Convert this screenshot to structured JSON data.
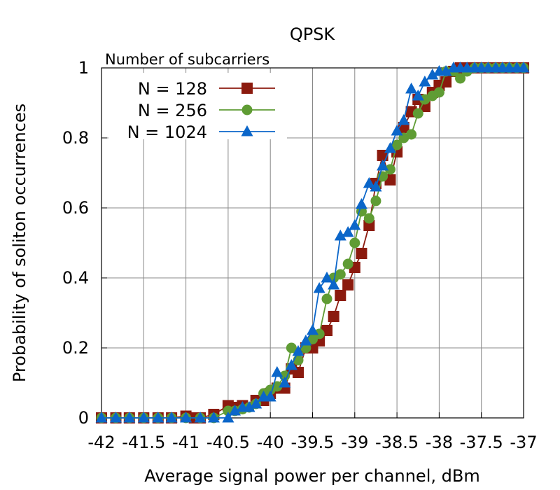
{
  "chart_data": {
    "type": "line",
    "title": "QPSK",
    "xlabel": "Average signal power per channel, dBm",
    "ylabel": "Probability of soliton occurrences",
    "xlim": [
      -42,
      -37
    ],
    "ylim": [
      0,
      1
    ],
    "x_ticks": [
      -42,
      -41.5,
      -41,
      -40.5,
      -40,
      -39.5,
      -39,
      -38.5,
      -38,
      -37.5,
      -37
    ],
    "x_tick_labels": [
      "-42",
      "-41.5",
      "-41",
      "-40.5",
      "-40",
      "-39.5",
      "-39",
      "-38.5",
      "-38",
      "-37.5",
      "-37"
    ],
    "y_ticks": [
      0,
      0.2,
      0.4,
      0.6,
      0.8,
      1
    ],
    "y_tick_labels": [
      "0",
      "0.2",
      "0.4",
      "0.6",
      "0.8",
      "1"
    ],
    "grid": true,
    "legend": {
      "title": "Number of subcarriers",
      "placement": "top-left"
    },
    "series": [
      {
        "name": "N = 128",
        "color": "#8b1a0e",
        "marker": "square",
        "x": [
          -42,
          -41.83,
          -41.67,
          -41.5,
          -41.33,
          -41.17,
          -41,
          -40.9,
          -40.83,
          -40.67,
          -40.5,
          -40.4,
          -40.33,
          -40.17,
          -40.08,
          -40,
          -39.92,
          -39.83,
          -39.75,
          -39.67,
          -39.58,
          -39.5,
          -39.42,
          -39.33,
          -39.25,
          -39.17,
          -39.08,
          -39,
          -38.92,
          -38.83,
          -38.75,
          -38.67,
          -38.58,
          -38.5,
          -38.42,
          -38.33,
          -38.25,
          -38.17,
          -38.08,
          -38,
          -37.92,
          -37.83,
          -37.75,
          -37.67,
          -37.58,
          -37.5,
          -37.42,
          -37.33,
          -37.25,
          -37.17,
          -37.08,
          -37
        ],
        "y": [
          0,
          0,
          0,
          0,
          0,
          0,
          0.005,
          0,
          0,
          0.01,
          0.035,
          0.03,
          0.035,
          0.05,
          0.05,
          0.07,
          0.085,
          0.085,
          0.14,
          0.13,
          0.2,
          0.2,
          0.22,
          0.25,
          0.29,
          0.35,
          0.38,
          0.43,
          0.47,
          0.55,
          0.67,
          0.75,
          0.68,
          0.76,
          0.83,
          0.875,
          0.91,
          0.89,
          0.93,
          0.95,
          0.96,
          0.99,
          1.0,
          1.0,
          1.0,
          1.0,
          1.0,
          1.0,
          1.0,
          1.0,
          1.0,
          1.0
        ]
      },
      {
        "name": "N = 256",
        "color": "#5f9c34",
        "marker": "circle",
        "x": [
          -42,
          -41.83,
          -41.67,
          -41.5,
          -41.33,
          -41.17,
          -41,
          -40.83,
          -40.67,
          -40.5,
          -40.42,
          -40.33,
          -40.25,
          -40.17,
          -40.08,
          -40,
          -39.92,
          -39.83,
          -39.75,
          -39.67,
          -39.58,
          -39.5,
          -39.42,
          -39.33,
          -39.25,
          -39.17,
          -39.08,
          -39,
          -38.92,
          -38.83,
          -38.75,
          -38.67,
          -38.58,
          -38.5,
          -38.42,
          -38.33,
          -38.25,
          -38.17,
          -38.08,
          -38,
          -37.92,
          -37.83,
          -37.75,
          -37.67,
          -37.58,
          -37.5,
          -37.42,
          -37.33,
          -37.25,
          -37.17,
          -37.08,
          -37
        ],
        "y": [
          0,
          0,
          0,
          0,
          0,
          0,
          0,
          0,
          0,
          0.02,
          0.02,
          0.025,
          0.03,
          0.04,
          0.07,
          0.08,
          0.09,
          0.12,
          0.2,
          0.165,
          0.2,
          0.225,
          0.24,
          0.34,
          0.4,
          0.41,
          0.44,
          0.5,
          0.59,
          0.57,
          0.62,
          0.69,
          0.71,
          0.78,
          0.8,
          0.81,
          0.87,
          0.91,
          0.92,
          0.93,
          0.99,
          0.99,
          0.97,
          0.99,
          1.0,
          1.0,
          1.0,
          1.0,
          1.0,
          1.0,
          1.0,
          1.0
        ]
      },
      {
        "name": "N = 1024",
        "color": "#0b66c9",
        "marker": "triangle",
        "x": [
          -42,
          -41.83,
          -41.67,
          -41.5,
          -41.33,
          -41.17,
          -41,
          -40.83,
          -40.67,
          -40.5,
          -40.42,
          -40.33,
          -40.25,
          -40.17,
          -40.08,
          -40,
          -39.92,
          -39.83,
          -39.75,
          -39.67,
          -39.58,
          -39.5,
          -39.42,
          -39.33,
          -39.25,
          -39.17,
          -39.08,
          -39,
          -38.92,
          -38.83,
          -38.75,
          -38.67,
          -38.58,
          -38.5,
          -38.42,
          -38.33,
          -38.25,
          -38.17,
          -38.08,
          -38,
          -37.92,
          -37.83,
          -37.75,
          -37.67,
          -37.58,
          -37.5,
          -37.42,
          -37.33,
          -37.25,
          -37.17,
          -37.08,
          -37
        ],
        "y": [
          0,
          0,
          0,
          0,
          0,
          0,
          0,
          0,
          0,
          0,
          0.02,
          0.03,
          0.03,
          0.04,
          0.06,
          0.06,
          0.13,
          0.1,
          0.15,
          0.19,
          0.22,
          0.25,
          0.37,
          0.4,
          0.38,
          0.52,
          0.53,
          0.55,
          0.61,
          0.67,
          0.66,
          0.72,
          0.77,
          0.82,
          0.85,
          0.94,
          0.92,
          0.96,
          0.98,
          0.99,
          0.99,
          1.0,
          1.0,
          1.0,
          1.0,
          1.0,
          1.0,
          1.0,
          1.0,
          1.0,
          1.0,
          1.0
        ]
      }
    ]
  }
}
